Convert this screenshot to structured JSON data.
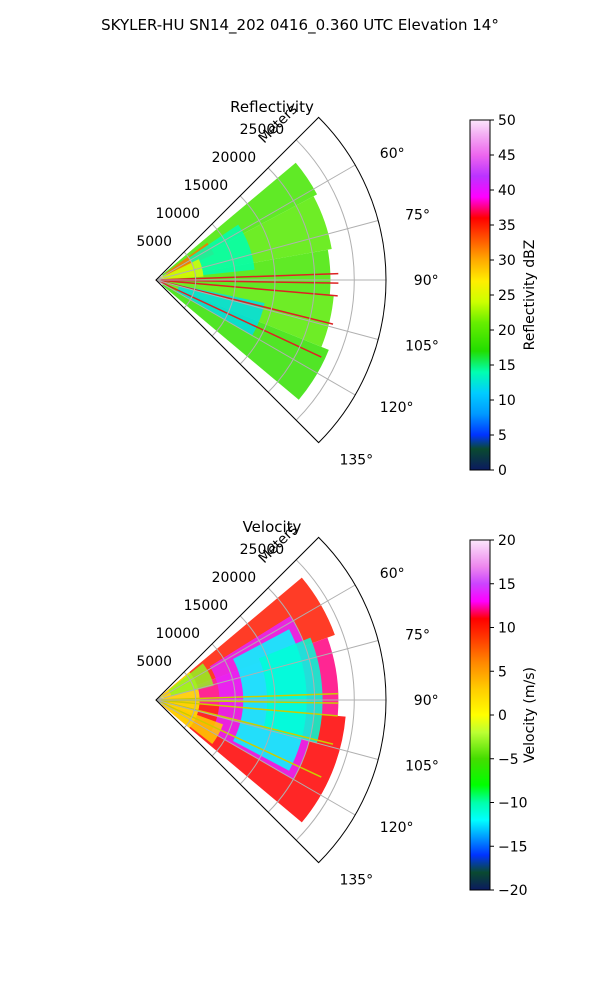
{
  "figure": {
    "title": "SKYLER-HU  SN14_202  0416_0.360 UTC Elevation 14°"
  },
  "chart_data": [
    {
      "type": "polar-sector",
      "title": "Reflectivity",
      "radial_label": "Meters",
      "radial_ticks": [
        "5000",
        "10000",
        "15000",
        "20000",
        "25000"
      ],
      "radial_tick_values": [
        5000,
        10000,
        15000,
        20000,
        25000
      ],
      "r_max": 29000,
      "angle_ticks": [
        "60°",
        "75°",
        "90°",
        "105°",
        "120°",
        "135°"
      ],
      "angle_tick_values": [
        60,
        75,
        90,
        105,
        120,
        135
      ],
      "angle_range": [
        45,
        135
      ],
      "colorbar": {
        "label": "Reflectivity dBZ",
        "min": 0,
        "max": 50,
        "ticks": [
          "0",
          "5",
          "10",
          "15",
          "20",
          "25",
          "30",
          "35",
          "40",
          "45",
          "50"
        ],
        "tick_values": [
          0,
          5,
          10,
          15,
          20,
          25,
          30,
          35,
          40,
          45,
          50
        ],
        "colormap_stops": [
          [
            0,
            "#0b1a60"
          ],
          [
            3,
            "#0a4a30"
          ],
          [
            5,
            "#0033ff"
          ],
          [
            8,
            "#0099ff"
          ],
          [
            11,
            "#00ccff"
          ],
          [
            14,
            "#00ffb0"
          ],
          [
            17,
            "#22dd00"
          ],
          [
            21,
            "#66ee00"
          ],
          [
            24,
            "#ccff00"
          ],
          [
            27,
            "#ffee00"
          ],
          [
            30,
            "#ffaa00"
          ],
          [
            33,
            "#ff5500"
          ],
          [
            36,
            "#ff0000"
          ],
          [
            39,
            "#ff00ff"
          ],
          [
            42,
            "#bb33ff"
          ],
          [
            45,
            "#ee66ee"
          ],
          [
            48,
            "#f4b0f4"
          ],
          [
            50,
            "#fbe6fb"
          ]
        ]
      },
      "echo_regions": [
        {
          "a0": 50,
          "a1": 62,
          "r0": 1000,
          "r1": 23000,
          "value": 19
        },
        {
          "a0": 62,
          "a1": 80,
          "r0": 1000,
          "r1": 22500,
          "value": 20
        },
        {
          "a0": 80,
          "a1": 95,
          "r0": 1000,
          "r1": 22000,
          "value": 19
        },
        {
          "a0": 95,
          "a1": 112,
          "r0": 1000,
          "r1": 22500,
          "value": 20
        },
        {
          "a0": 112,
          "a1": 130,
          "r0": 1000,
          "r1": 23500,
          "value": 18
        },
        {
          "a0": 54,
          "a1": 66,
          "r0": 1500,
          "r1": 8000,
          "value": 32
        },
        {
          "a0": 56,
          "a1": 84,
          "r0": 5000,
          "r1": 12500,
          "value": 14
        },
        {
          "a0": 64,
          "a1": 86,
          "r0": 500,
          "r1": 6000,
          "value": 25
        },
        {
          "a0": 102,
          "a1": 120,
          "r0": 3000,
          "r1": 14000,
          "value": 12
        }
      ],
      "beam_lines": [
        88,
        91,
        95,
        104,
        115
      ],
      "beam_line_color": "#dd2222"
    },
    {
      "type": "polar-sector",
      "title": "Velocity",
      "radial_label": "Meters",
      "radial_ticks": [
        "5000",
        "10000",
        "15000",
        "20000",
        "25000"
      ],
      "radial_tick_values": [
        5000,
        10000,
        15000,
        20000,
        25000
      ],
      "r_max": 29000,
      "angle_ticks": [
        "60°",
        "75°",
        "90°",
        "105°",
        "120°",
        "135°"
      ],
      "angle_tick_values": [
        60,
        75,
        90,
        105,
        120,
        135
      ],
      "angle_range": [
        45,
        135
      ],
      "colorbar": {
        "label": "Velocity (m/s)",
        "min": -20,
        "max": 20,
        "ticks": [
          "−20",
          "−15",
          "−10",
          "−5",
          "0",
          "5",
          "10",
          "15",
          "20"
        ],
        "tick_values": [
          -20,
          -15,
          -10,
          -5,
          0,
          5,
          10,
          15,
          20
        ],
        "colormap_stops": [
          [
            -20,
            "#0b1a60"
          ],
          [
            -18,
            "#0a4a30"
          ],
          [
            -16,
            "#0033ff"
          ],
          [
            -14,
            "#0099ff"
          ],
          [
            -12,
            "#00ffff"
          ],
          [
            -10,
            "#00ffaa"
          ],
          [
            -8,
            "#00ff00"
          ],
          [
            -5,
            "#44dd00"
          ],
          [
            -2,
            "#bbff33"
          ],
          [
            0,
            "#ffff00"
          ],
          [
            3,
            "#ffcc00"
          ],
          [
            6,
            "#ff8800"
          ],
          [
            9,
            "#ff3300"
          ],
          [
            11,
            "#ff0000"
          ],
          [
            13,
            "#ff00ff"
          ],
          [
            15,
            "#cc44ff"
          ],
          [
            17,
            "#ee88ee"
          ],
          [
            20,
            "#fbe6fb"
          ]
        ]
      },
      "echo_regions": [
        {
          "a0": 50,
          "a1": 70,
          "r0": 1000,
          "r1": 24000,
          "value": 10
        },
        {
          "a0": 70,
          "a1": 95,
          "r0": 1000,
          "r1": 23000,
          "value": 12
        },
        {
          "a0": 95,
          "a1": 130,
          "r0": 1000,
          "r1": 24000,
          "value": 11
        },
        {
          "a0": 58,
          "a1": 120,
          "r0": 8000,
          "r1": 20000,
          "value": 14
        },
        {
          "a0": 62,
          "a1": 118,
          "r0": 11000,
          "r1": 19000,
          "value": -12
        },
        {
          "a0": 68,
          "a1": 105,
          "r0": 14000,
          "r1": 21000,
          "value": -11
        },
        {
          "a0": 50,
          "a1": 130,
          "r0": 500,
          "r1": 5500,
          "value": 1
        },
        {
          "a0": 52,
          "a1": 76,
          "r0": 2000,
          "r1": 7500,
          "value": -3
        },
        {
          "a0": 110,
          "a1": 128,
          "r0": 3000,
          "r1": 9000,
          "value": 3
        }
      ],
      "beam_lines": [
        88,
        91,
        95,
        104,
        115
      ],
      "beam_line_color": "#cccc00"
    }
  ]
}
